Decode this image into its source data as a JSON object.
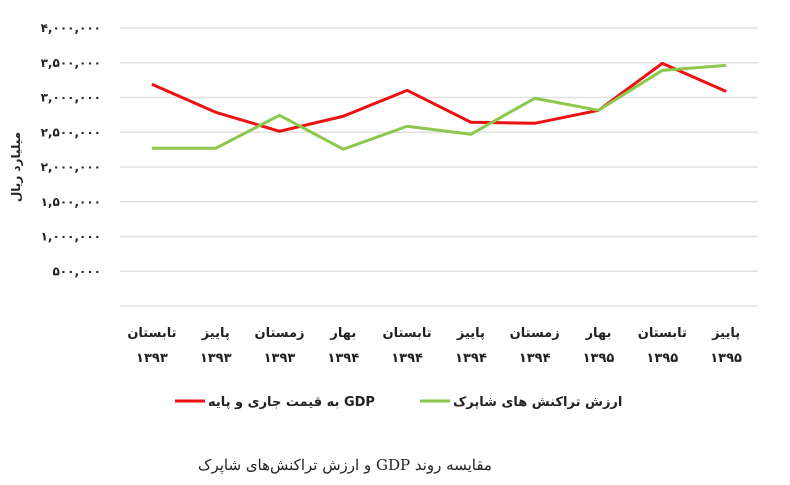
{
  "chart_data": {
    "type": "line",
    "title": "",
    "caption": "مقایسه روند GDP و ارزش تراکنش‌های شاپرک",
    "xlabel": "",
    "ylabel": "میلیارد ریال",
    "ylim": [
      0,
      4000000
    ],
    "grid": true,
    "legend_position": "bottom",
    "categories": [
      {
        "season": "تابستان",
        "year": "۱۳۹۳"
      },
      {
        "season": "پاییز",
        "year": "۱۳۹۳"
      },
      {
        "season": "زمستان",
        "year": "۱۳۹۳"
      },
      {
        "season": "بهار",
        "year": "۱۳۹۴"
      },
      {
        "season": "تابستان",
        "year": "۱۳۹۴"
      },
      {
        "season": "پاییز",
        "year": "۱۳۹۴"
      },
      {
        "season": "زمستان",
        "year": "۱۳۹۴"
      },
      {
        "season": "بهار",
        "year": "۱۳۹۵"
      },
      {
        "season": "تابستان",
        "year": "۱۳۹۵"
      },
      {
        "season": "پاییز",
        "year": "۱۳۹۵"
      }
    ],
    "yticks": [
      {
        "value": 500000,
        "label": "۵۰۰,۰۰۰"
      },
      {
        "value": 1000000,
        "label": "۱,۰۰۰,۰۰۰"
      },
      {
        "value": 1500000,
        "label": "۱,۵۰۰,۰۰۰"
      },
      {
        "value": 2000000,
        "label": "۲,۰۰۰,۰۰۰"
      },
      {
        "value": 2500000,
        "label": "۲,۵۰۰,۰۰۰"
      },
      {
        "value": 3000000,
        "label": "۳,۰۰۰,۰۰۰"
      },
      {
        "value": 3500000,
        "label": "۳,۵۰۰,۰۰۰"
      },
      {
        "value": 4000000,
        "label": "۴,۰۰۰,۰۰۰"
      }
    ],
    "series": [
      {
        "name": "GDP به قیمت جاری و پایه",
        "color": "#ee1111",
        "values": [
          3190000,
          2787000,
          2514000,
          2730000,
          3103000,
          2644000,
          2629000,
          2816000,
          3491000,
          3089000
        ]
      },
      {
        "name": "ارزش تراکنش های شاپرک",
        "color": "#8cc84b",
        "values": [
          2270000,
          2270000,
          2744000,
          2256000,
          2586000,
          2471000,
          2989000,
          2816000,
          3391000,
          3463000
        ]
      }
    ]
  }
}
